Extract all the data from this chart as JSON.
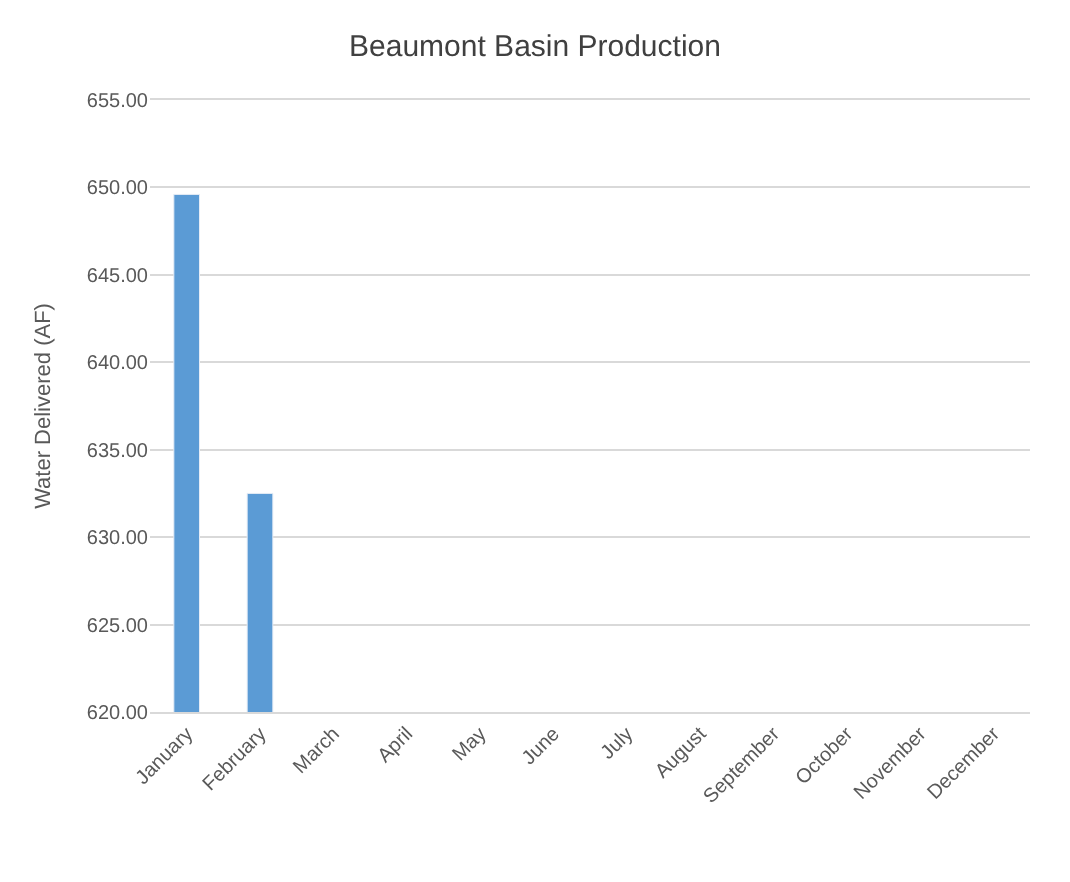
{
  "chart_data": {
    "type": "bar",
    "title": "Beaumont Basin Production",
    "ylabel": "Water Delivered (AF)",
    "categories": [
      "January",
      "February",
      "March",
      "April",
      "May",
      "June",
      "July",
      "August",
      "September",
      "October",
      "November",
      "December"
    ],
    "series": [
      {
        "color": "#5b9bd5",
        "values": [
          649.6,
          632.5,
          null,
          null,
          null,
          null,
          null,
          null,
          null,
          null,
          null,
          null
        ]
      }
    ],
    "ylim": [
      620,
      655
    ],
    "yticks": [
      {
        "value": 620,
        "label": "620.00"
      },
      {
        "value": 625,
        "label": "625.00"
      },
      {
        "value": 630,
        "label": "630.00"
      },
      {
        "value": 635,
        "label": "635.00"
      },
      {
        "value": 640,
        "label": "640.00"
      },
      {
        "value": 645,
        "label": "645.00"
      },
      {
        "value": 650,
        "label": "650.00"
      },
      {
        "value": 655,
        "label": "655.00"
      }
    ],
    "grid": "y"
  }
}
